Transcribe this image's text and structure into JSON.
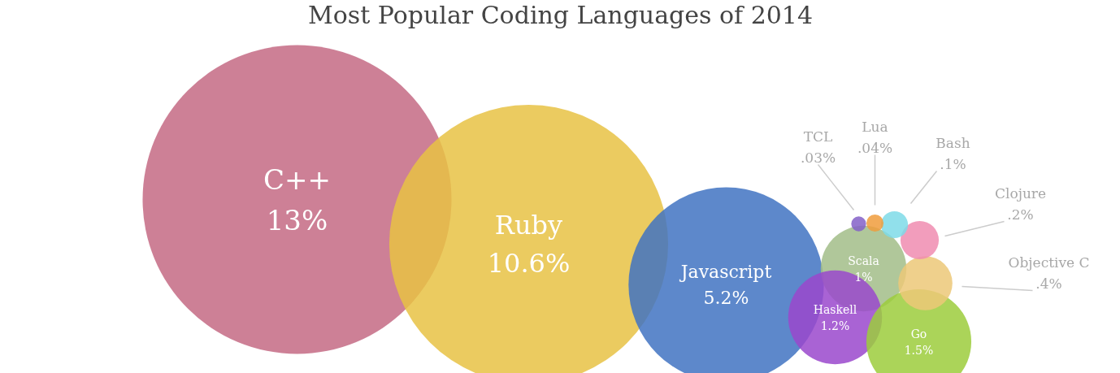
{
  "chart_data": {
    "type": "other",
    "title": "Most Popular Coding Languages of 2014",
    "categories": [
      "C++",
      "Ruby",
      "Javascript",
      "Scala",
      "Haskell",
      "Go",
      "Objective C",
      "Clojure",
      "Bash",
      "Lua",
      "TCL"
    ],
    "values": [
      13,
      10.6,
      5.2,
      1,
      1.2,
      1.5,
      0.4,
      0.2,
      0.1,
      0.04,
      0.03
    ],
    "value_labels": [
      "13%",
      "10.6%",
      "5.2%",
      "1%",
      "1.2%",
      "1.5%",
      ".4%",
      ".2%",
      ".1%",
      ".04%",
      ".03%"
    ],
    "colors": [
      "#c46a84",
      "#e8c244",
      "#4173c2",
      "#a2bd88",
      "#9a48cc",
      "#9ccc3c",
      "#ecc878",
      "#f08cb0",
      "#7edbe8",
      "#f09c3c",
      "#8460c8"
    ]
  }
}
